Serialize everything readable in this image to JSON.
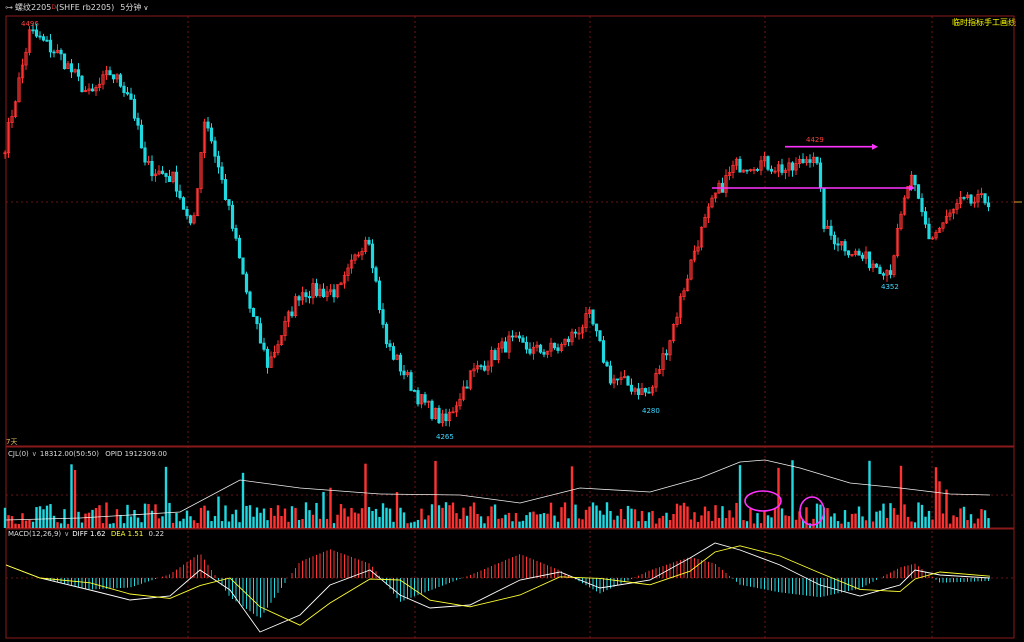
{
  "header": {
    "symbol_icon": "link-icon",
    "title": "螺纹2205",
    "superscript": "D",
    "contract": "(SHFE rb2205)",
    "timeframe": "5分钟",
    "chevron_icon": "chevron-down-icon",
    "right_note": "临时指标手工画线"
  },
  "colors": {
    "up": "#ff3232",
    "down": "#20d8e0",
    "grid": "#8a1a1a",
    "annotation": "#ff33ff",
    "dif": "#ffffff",
    "dea": "#ffff33",
    "price_label_top": "#ff4040",
    "price_label_bottom": "#40d8ff",
    "note": "#ffff00"
  },
  "chart_data": [
    {
      "type": "candlestick",
      "period_label": "7天",
      "ylim": [
        4255,
        4505
      ],
      "price_labels": [
        {
          "text": "4496",
          "value": 4496,
          "bar": 30
        },
        {
          "text": "4429",
          "value": 4429,
          "bar": 815
        },
        {
          "text": "4352",
          "value": 4352,
          "bar": 890
        },
        {
          "text": "4280",
          "value": 4280,
          "bar": 651
        },
        {
          "text": "4265",
          "value": 4265,
          "bar": 445
        }
      ],
      "path": [
        [
          5,
          4430
        ],
        [
          30,
          4496
        ],
        [
          60,
          4482
        ],
        [
          90,
          4458
        ],
        [
          110,
          4472
        ],
        [
          130,
          4460
        ],
        [
          145,
          4418
        ],
        [
          175,
          4410
        ],
        [
          192,
          4378
        ],
        [
          205,
          4448
        ],
        [
          225,
          4402
        ],
        [
          250,
          4335
        ],
        [
          268,
          4302
        ],
        [
          300,
          4345
        ],
        [
          340,
          4345
        ],
        [
          368,
          4380
        ],
        [
          385,
          4316
        ],
        [
          420,
          4282
        ],
        [
          445,
          4268
        ],
        [
          470,
          4296
        ],
        [
          510,
          4316
        ],
        [
          535,
          4310
        ],
        [
          560,
          4312
        ],
        [
          590,
          4330
        ],
        [
          610,
          4295
        ],
        [
          650,
          4285
        ],
        [
          670,
          4318
        ],
        [
          695,
          4370
        ],
        [
          715,
          4400
        ],
        [
          735,
          4418
        ],
        [
          760,
          4420
        ],
        [
          790,
          4415
        ],
        [
          815,
          4426
        ],
        [
          825,
          4380
        ],
        [
          860,
          4365
        ],
        [
          890,
          4357
        ],
        [
          910,
          4412
        ],
        [
          930,
          4375
        ],
        [
          960,
          4396
        ],
        [
          990,
          4398
        ]
      ],
      "annotations": [
        {
          "type": "arrow",
          "from": [
            785,
            4429
          ],
          "to": [
            878,
            4429
          ]
        },
        {
          "type": "arrow",
          "from": [
            712,
            4405
          ],
          "to": [
            915,
            4405
          ]
        }
      ]
    },
    {
      "type": "bar",
      "title": "CJL(0)",
      "values_text": "18312.00(50:50)",
      "extra_text": "OPID 1912309.00",
      "series": [
        {
          "name": "OPID"
        }
      ],
      "annotations": [
        {
          "type": "ellipse",
          "bar": 763
        },
        {
          "type": "ellipse",
          "bar": 812
        }
      ]
    },
    {
      "type": "bar",
      "title": "MACD(12,26,9)",
      "dif_text": "DIFF 1.62",
      "dea_text": "DEA 1.51",
      "macd_text": "0.22",
      "series": [
        {
          "name": "DIFF"
        },
        {
          "name": "DEA"
        }
      ]
    }
  ]
}
